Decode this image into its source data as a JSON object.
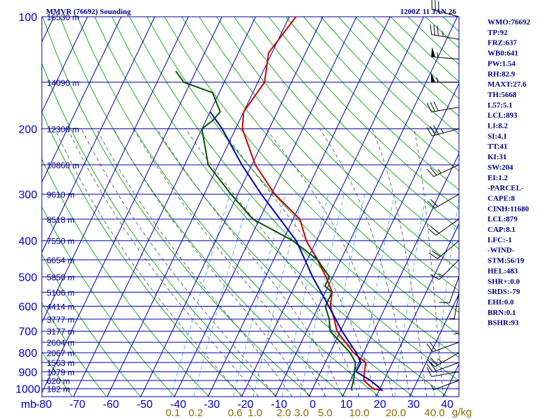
{
  "chart_data": {
    "type": "skew-t",
    "title": "MMVR (76692) Sounding",
    "valid_time": "1200Z 11 JAN 26",
    "pressure_label": "mb",
    "x_label": "g/kg",
    "pressure_range": [
      1050,
      100
    ],
    "temperature_range": [
      -80,
      40
    ],
    "pressure_ticks": [
      100,
      200,
      300,
      400,
      500,
      600,
      700,
      800,
      900,
      1000
    ],
    "temperature_ticks": [
      -80,
      -70,
      -60,
      -50,
      -40,
      -30,
      -20,
      -10,
      0,
      10,
      20,
      30,
      40
    ],
    "mixing_ratio_ticks": [
      "0.1",
      "0.2",
      "0.6",
      "1.0",
      "2.0",
      "3.0",
      "5.0",
      "10.0",
      "20.0",
      "40.0"
    ],
    "height_levels": [
      {
        "p": 100,
        "label": "16530 m"
      },
      {
        "p": 150,
        "label": "14090 m"
      },
      {
        "p": 200,
        "label": "12300 m"
      },
      {
        "p": 250,
        "label": "10860 m"
      },
      {
        "p": 300,
        "label": "9610 m"
      },
      {
        "p": 350,
        "label": "8518 m"
      },
      {
        "p": 400,
        "label": "7550 m"
      },
      {
        "p": 450,
        "label": "6654 m"
      },
      {
        "p": 500,
        "label": "5850 m"
      },
      {
        "p": 550,
        "label": "5106 m"
      },
      {
        "p": 600,
        "label": "4414 m"
      },
      {
        "p": 650,
        "label": "3777 m"
      },
      {
        "p": 700,
        "label": "3177 m"
      },
      {
        "p": 750,
        "label": "2604 m"
      },
      {
        "p": 800,
        "label": "2067 m"
      },
      {
        "p": 850,
        "label": "1563 m"
      },
      {
        "p": 900,
        "label": "1079 m"
      },
      {
        "p": 950,
        "label": "620 m"
      },
      {
        "p": 1000,
        "label": "182 m"
      }
    ],
    "series": [
      {
        "name": "temperature",
        "color": "#cc0000",
        "points": [
          [
            1010,
            21
          ],
          [
            1000,
            18
          ],
          [
            950,
            14
          ],
          [
            925,
            13.5
          ],
          [
            900,
            13
          ],
          [
            850,
            12
          ],
          [
            800,
            7
          ],
          [
            700,
            -1
          ],
          [
            650,
            -3.5
          ],
          [
            600,
            -6.5
          ],
          [
            550,
            -8
          ],
          [
            500,
            -12
          ],
          [
            450,
            -17
          ],
          [
            400,
            -23
          ],
          [
            350,
            -28
          ],
          [
            300,
            -39
          ],
          [
            250,
            -49
          ],
          [
            200,
            -58
          ],
          [
            180,
            -60
          ],
          [
            150,
            -58
          ],
          [
            125,
            -61
          ],
          [
            100,
            -58
          ]
        ]
      },
      {
        "name": "dewpoint",
        "color": "#005500",
        "points": [
          [
            1010,
            12
          ],
          [
            1000,
            11.5
          ],
          [
            950,
            11
          ],
          [
            900,
            10
          ],
          [
            850,
            9
          ],
          [
            800,
            6
          ],
          [
            700,
            -3
          ],
          [
            650,
            -5
          ],
          [
            600,
            -8
          ],
          [
            550,
            -8
          ],
          [
            530,
            -11
          ],
          [
            500,
            -11
          ],
          [
            450,
            -17
          ],
          [
            400,
            -27
          ],
          [
            350,
            -42
          ],
          [
            300,
            -52
          ],
          [
            250,
            -63
          ],
          [
            200,
            -70
          ],
          [
            190,
            -68
          ],
          [
            180,
            -67
          ],
          [
            160,
            -72
          ],
          [
            150,
            -82
          ],
          [
            140,
            -86
          ]
        ]
      },
      {
        "name": "parcel",
        "color": "#0000aa",
        "points": [
          [
            1010,
            21
          ],
          [
            950,
            16
          ],
          [
            900,
            10.5
          ],
          [
            850,
            10.6
          ],
          [
            800,
            7.8
          ],
          [
            700,
            0.5
          ],
          [
            600,
            -7
          ],
          [
            500,
            -16
          ],
          [
            400,
            -26
          ],
          [
            300,
            -43
          ],
          [
            250,
            -53
          ],
          [
            200,
            -64
          ],
          [
            180,
            -70
          ]
        ]
      }
    ],
    "wind_barbs": [
      {
        "p": 100,
        "dir": 285,
        "kt": 30
      },
      {
        "p": 115,
        "dir": 280,
        "kt": 35
      },
      {
        "p": 130,
        "dir": 275,
        "kt": 55
      },
      {
        "p": 150,
        "dir": 270,
        "kt": 55
      },
      {
        "p": 175,
        "dir": 260,
        "kt": 30
      },
      {
        "p": 200,
        "dir": 255,
        "kt": 35
      },
      {
        "p": 250,
        "dir": 245,
        "kt": 25
      },
      {
        "p": 300,
        "dir": 240,
        "kt": 20
      },
      {
        "p": 350,
        "dir": 235,
        "kt": 20
      },
      {
        "p": 400,
        "dir": 230,
        "kt": 20
      },
      {
        "p": 450,
        "dir": 225,
        "kt": 15
      },
      {
        "p": 500,
        "dir": 200,
        "kt": 10
      },
      {
        "p": 550,
        "dir": 190,
        "kt": 5
      },
      {
        "p": 600,
        "dir": 180,
        "kt": 5
      },
      {
        "p": 750,
        "dir": 250,
        "kt": 20
      },
      {
        "p": 800,
        "dir": 240,
        "kt": 25
      },
      {
        "p": 850,
        "dir": 250,
        "kt": 20
      },
      {
        "p": 900,
        "dir": 260,
        "kt": 10
      },
      {
        "p": 950,
        "dir": 250,
        "kt": 5
      }
    ],
    "indices": [
      "WMO:76692",
      "TP:92",
      "FRZ:637",
      "WB0:641",
      "PW:1.54",
      "RH:82.9",
      "MAXT:27.6",
      "TH:5668",
      "L57:5.1",
      "LCL:893",
      "LI:8.2",
      "SI:4.1",
      "TT:41",
      "KI:31",
      "SW:204",
      "EI:1.2",
      "-PARCEL-",
      "CAPE:8",
      "CINH:11680",
      "LCL:879",
      "CAP:8.1",
      "LFC:-1",
      "-WIND-",
      "STM:56/19",
      "HEL:483",
      "SHR+:0.0",
      "SRDS:-79",
      "EHI:0.0",
      "BRN:0.1",
      "BSHR:93"
    ],
    "colors": {
      "background": "#ffffff",
      "isobar": "#0000aa",
      "isotherm": "#0000aa",
      "dry_adiabat": "#22aa22",
      "moist_adiabat": "#444444",
      "mixing_ratio": "#33aadd",
      "text": "#000080",
      "tick": "#0000cc",
      "mixing_label": "#8b6a00"
    }
  }
}
